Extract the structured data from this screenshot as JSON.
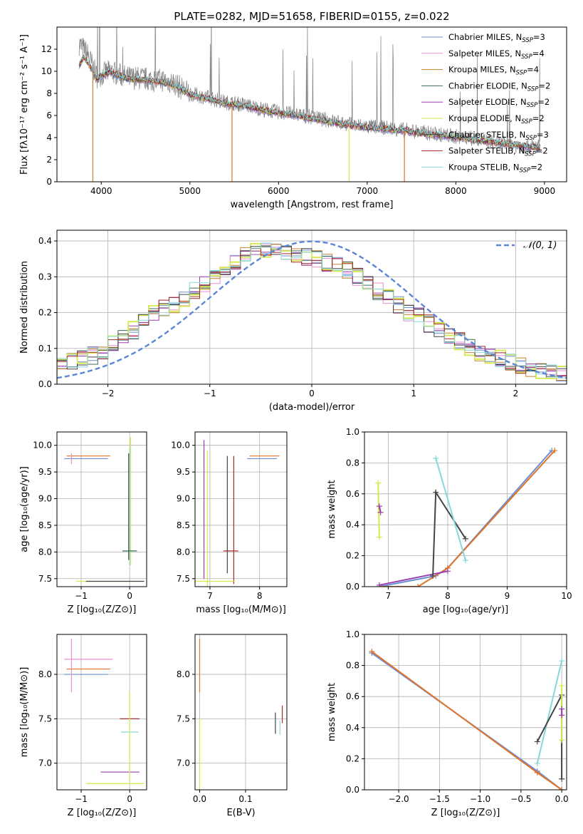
{
  "chart_data": [
    {
      "id": "spectrum",
      "type": "line",
      "title": "PLATE=0282, MJD=51658, FIBERID=0155, z=0.022",
      "xlabel": "wavelength [Angstrom, rest frame]",
      "ylabel": "Flux [fλ10⁻¹⁷ erg cm⁻² s⁻¹ A⁻¹]",
      "xlim": [
        3500,
        9250
      ],
      "ylim": [
        0,
        14
      ],
      "xticks": [
        4000,
        5000,
        6000,
        7000,
        8000,
        9000
      ],
      "yticks": [
        0,
        2,
        4,
        6,
        8,
        10,
        12
      ],
      "grid": false,
      "legend_position": "top-right",
      "observed": {
        "color": "#808080",
        "x": [
          3750,
          3800,
          3850,
          3900,
          3950,
          4000,
          4100,
          4200,
          4300,
          4400,
          4500,
          4600,
          4700,
          4800,
          4900,
          5000,
          5200,
          5400,
          5600,
          5800,
          6000,
          6200,
          6400,
          6600,
          6800,
          7000,
          7200,
          7400,
          7600,
          7800,
          8000,
          8200,
          8400,
          8600,
          8800,
          8950
        ],
        "y": [
          12.5,
          12.0,
          11.5,
          10.5,
          9.5,
          9.7,
          10.0,
          9.7,
          9.4,
          9.4,
          9.3,
          9.2,
          9.2,
          9.0,
          8.5,
          8.0,
          7.6,
          7.2,
          7.0,
          6.6,
          6.3,
          6.1,
          5.8,
          5.5,
          5.2,
          5.0,
          4.9,
          4.7,
          4.5,
          4.3,
          4.1,
          3.9,
          3.6,
          3.4,
          3.2,
          3.2
        ]
      },
      "model": {
        "x": [
          3750,
          3800,
          3850,
          3900,
          3950,
          4000,
          4100,
          4200,
          4300,
          4400,
          4500,
          4600,
          4700,
          4800,
          4900,
          5000,
          5200,
          5400,
          5600,
          5800,
          6000,
          6200,
          6400,
          6600,
          6800,
          7000,
          7200,
          7400,
          7600,
          7800,
          8000,
          8200,
          8400,
          8600,
          8800,
          8950
        ],
        "y": [
          10.5,
          11.2,
          10.8,
          10.0,
          9.3,
          9.6,
          9.9,
          9.6,
          9.3,
          9.3,
          9.2,
          9.1,
          9.0,
          8.8,
          8.4,
          7.9,
          7.5,
          7.1,
          6.9,
          6.5,
          6.2,
          6.0,
          5.7,
          5.4,
          5.1,
          4.9,
          4.8,
          4.6,
          4.4,
          4.2,
          4.0,
          3.8,
          3.6,
          3.4,
          3.2,
          3.1
        ]
      },
      "series": [
        {
          "name": "Chabrier MILES, N_SSP=3",
          "legend_main": "Chabrier MILES, N",
          "legend_sub": "SSP",
          "legend_tail": "=3",
          "color": "#6a8fd6"
        },
        {
          "name": "Salpeter MILES, N_SSP=4",
          "legend_main": "Salpeter MILES, N",
          "legend_sub": "SSP",
          "legend_tail": "=4",
          "color": "#e88fd0"
        },
        {
          "name": "Kroupa MILES, N_SSP=4",
          "legend_main": "Kroupa MILES, N",
          "legend_sub": "SSP",
          "legend_tail": "=4",
          "color": "#c8822e"
        },
        {
          "name": "Chabrier ELODIE, N_SSP=2",
          "legend_main": "Chabrier ELODIE, N",
          "legend_sub": "SSP",
          "legend_tail": "=2",
          "color": "#3d6b5e"
        },
        {
          "name": "Salpeter ELODIE, N_SSP=2",
          "legend_main": "Salpeter ELODIE, N",
          "legend_sub": "SSP",
          "legend_tail": "=2",
          "color": "#9a3fb0"
        },
        {
          "name": "Kroupa ELODIE, N_SSP=2",
          "legend_main": "Kroupa ELODIE, N",
          "legend_sub": "SSP",
          "legend_tail": "=2",
          "color": "#d6e84a"
        },
        {
          "name": "Chabrier STELIB, N_SSP=3",
          "legend_main": "Chabrier STELIB, N",
          "legend_sub": "SSP",
          "legend_tail": "=3",
          "color": "#444444"
        },
        {
          "name": "Salpeter STELIB, N_SSP=2",
          "legend_main": "Salpeter STELIB, N",
          "legend_sub": "SSP",
          "legend_tail": "=2",
          "color": "#a52a2a"
        },
        {
          "name": "Kroupa STELIB, N_SSP=2",
          "legend_main": "Kroupa STELIB, N",
          "legend_sub": "SSP",
          "legend_tail": "=2",
          "color": "#86d8dc"
        }
      ],
      "absorption_spikes": [
        {
          "x": 3905,
          "color": "#c8822e"
        },
        {
          "x": 5475,
          "color": "#e0742a"
        },
        {
          "x": 6795,
          "color": "#d6e84a"
        },
        {
          "x": 7420,
          "color": "#e0742a"
        }
      ]
    },
    {
      "id": "residuals",
      "type": "line",
      "xlabel": "(data-model)/error",
      "ylabel": "Normed distribution",
      "xlim": [
        -2.5,
        2.5
      ],
      "ylim": [
        0,
        0.43
      ],
      "xticks": [
        -2,
        -1,
        0,
        1,
        2
      ],
      "yticks": [
        0.0,
        0.1,
        0.2,
        0.3,
        0.4
      ],
      "grid": true,
      "legend_position": "top-right",
      "reference": {
        "name": "N(0,1)",
        "label": "𝒩(0, 1)",
        "color": "#5b86d6",
        "mean": 0,
        "sigma": 1
      },
      "hist_bin_edges_range": [
        -2.5,
        2.5
      ],
      "hist_bins": 50,
      "hist_profile": [
        0.06,
        0.065,
        0.07,
        0.08,
        0.09,
        0.11,
        0.13,
        0.15,
        0.17,
        0.2,
        0.21,
        0.22,
        0.24,
        0.26,
        0.28,
        0.3,
        0.32,
        0.34,
        0.36,
        0.37,
        0.375,
        0.37,
        0.365,
        0.36,
        0.355,
        0.35,
        0.34,
        0.33,
        0.32,
        0.3,
        0.28,
        0.26,
        0.24,
        0.22,
        0.2,
        0.19,
        0.17,
        0.15,
        0.13,
        0.12,
        0.1,
        0.09,
        0.08,
        0.07,
        0.06,
        0.05,
        0.045,
        0.04,
        0.035,
        0.03
      ]
    },
    {
      "id": "age-vs-Z",
      "type": "scatter",
      "xlabel": "Z [log₁₀(Z/Z⊙)]",
      "ylabel": "age  [log₁₀(age/yr)]",
      "xlim": [
        -1.5,
        0.35
      ],
      "ylim": [
        7.35,
        10.25
      ],
      "xticks": [
        -1,
        0
      ],
      "yticks": [
        7.5,
        8.0,
        8.5,
        9.0,
        9.5,
        10.0
      ],
      "grid": true,
      "errorbars": [
        {
          "x": -0.85,
          "y": 9.8,
          "xerr": 0.45,
          "color": "#e0742a"
        },
        {
          "x": -0.9,
          "y": 9.75,
          "xerr": 0.45,
          "color": "#6a8fd6"
        },
        {
          "x": -1.2,
          "y": 9.75,
          "yerr": 0.1,
          "color": "#e88fd0"
        },
        {
          "x": -0.02,
          "y": 8.85,
          "yerr": 1.0,
          "color": "#444444"
        },
        {
          "x": 0.0,
          "y": 8.85,
          "yerr": 1.1,
          "color": "#86d8dc"
        },
        {
          "x": 0.02,
          "y": 8.95,
          "yerr": 1.2,
          "color": "#d6e84a"
        },
        {
          "x": 0.0,
          "y": 8.02,
          "xerr": 0.15,
          "color": "#3d6b5e"
        },
        {
          "x": -0.4,
          "y": 7.45,
          "xerr": 0.7,
          "color": "#d6e84a"
        },
        {
          "x": -0.3,
          "y": 7.45,
          "xerr": 0.6,
          "color": "#444444"
        }
      ]
    },
    {
      "id": "age-vs-mass",
      "type": "scatter",
      "xlabel": "mass [log₁₀(M/M⊙)]",
      "ylabel": "",
      "xlim": [
        6.7,
        8.55
      ],
      "ylim": [
        7.35,
        10.25
      ],
      "xticks": [
        7,
        8
      ],
      "yticks": [
        7.5,
        8.0,
        8.5,
        9.0,
        9.5,
        10.0
      ],
      "grid": true,
      "errorbars": [
        {
          "x": 6.88,
          "y": 8.8,
          "yerr": 1.3,
          "color": "#9a3fb0"
        },
        {
          "x": 6.95,
          "y": 8.5,
          "yerr": 1.4,
          "color": "#d6e84a"
        },
        {
          "x": 7.35,
          "y": 8.7,
          "yerr": 1.1,
          "color": "#444444"
        },
        {
          "x": 7.48,
          "y": 8.6,
          "yerr": 1.2,
          "color": "#a52a2a"
        },
        {
          "x": 7.42,
          "y": 8.02,
          "xerr": 0.15,
          "color": "#a52a2a"
        },
        {
          "x": 8.1,
          "y": 9.8,
          "xerr": 0.3,
          "color": "#e0742a"
        },
        {
          "x": 8.05,
          "y": 9.75,
          "xerr": 0.3,
          "color": "#6a8fd6"
        },
        {
          "x": 7.1,
          "y": 7.45,
          "xerr": 0.4,
          "color": "#d6e84a"
        }
      ]
    },
    {
      "id": "massweight-vs-age",
      "type": "line",
      "xlabel": "age  [log₁₀(age/yr)]",
      "ylabel": "mass weight",
      "xlim": [
        6.6,
        10.0
      ],
      "ylim": [
        0.0,
        1.0
      ],
      "xticks": [
        7,
        8,
        9,
        10
      ],
      "yticks": [
        0.0,
        0.2,
        0.4,
        0.6,
        0.8,
        1.0
      ],
      "grid": true,
      "series": [
        {
          "name": "Chabrier MILES",
          "color": "#6a8fd6",
          "x": [
            6.85,
            7.8,
            8.0,
            9.75
          ],
          "y": [
            0.0,
            0.07,
            0.12,
            0.88
          ]
        },
        {
          "name": "Kroupa MILES",
          "color": "#e0742a",
          "x": [
            6.85,
            7.5,
            8.0,
            9.8
          ],
          "y": [
            0.0,
            0.0,
            0.12,
            0.88
          ]
        },
        {
          "name": "Salpeter MILES",
          "color": "#9a3fb0",
          "x": [
            6.85,
            8.0
          ],
          "y": [
            0.01,
            0.1
          ]
        },
        {
          "name": "Chabrier STELIB",
          "color": "#444444",
          "x": [
            7.75,
            7.8,
            8.3
          ],
          "y": [
            0.07,
            0.61,
            0.31
          ]
        },
        {
          "name": "Kroupa STELIB",
          "color": "#86d8dc",
          "x": [
            7.8,
            8.3
          ],
          "y": [
            0.83,
            0.17
          ]
        },
        {
          "name": "Kroupa ELODIE",
          "color": "#d6e84a",
          "x": [
            6.83,
            6.85
          ],
          "y": [
            0.67,
            0.32
          ]
        },
        {
          "name": "Salpeter ELODIE",
          "color": "#9a3fb0",
          "x": [
            6.85,
            6.87
          ],
          "y": [
            0.52,
            0.48
          ]
        }
      ]
    },
    {
      "id": "mass-vs-Z",
      "type": "scatter",
      "xlabel": "Z [log₁₀(Z/Z⊙)]",
      "ylabel": "mass [log₁₀(M/M⊙)]",
      "xlim": [
        -1.5,
        0.35
      ],
      "ylim": [
        6.7,
        8.45
      ],
      "xticks": [
        -1,
        0
      ],
      "yticks": [
        7.0,
        7.5,
        8.0
      ],
      "grid": true,
      "errorbars": [
        {
          "x": -0.85,
          "y": 8.17,
          "xerr": 0.5,
          "color": "#e88fd0"
        },
        {
          "x": -0.85,
          "y": 8.06,
          "xerr": 0.45,
          "color": "#e0742a"
        },
        {
          "x": -0.9,
          "y": 8.0,
          "xerr": 0.45,
          "color": "#6a8fd6"
        },
        {
          "x": -1.2,
          "y": 8.1,
          "yerr": 0.3,
          "color": "#e88fd0"
        },
        {
          "x": 0.0,
          "y": 7.5,
          "xerr": 0.2,
          "color": "#a52a2a"
        },
        {
          "x": 0.0,
          "y": 7.35,
          "xerr": 0.18,
          "color": "#86d8dc"
        },
        {
          "x": -0.2,
          "y": 6.9,
          "xerr": 0.4,
          "color": "#9a3fb0"
        },
        {
          "x": -0.3,
          "y": 6.77,
          "xerr": 0.6,
          "color": "#d6e84a"
        },
        {
          "x": 0.0,
          "y": 7.3,
          "yerr": 0.5,
          "color": "#d6e84a"
        }
      ]
    },
    {
      "id": "mass-vs-EBV",
      "type": "scatter",
      "xlabel": "E(B-V)",
      "ylabel": "",
      "xlim": [
        -0.01,
        0.19
      ],
      "ylim": [
        6.7,
        8.45
      ],
      "xticks": [
        0.0,
        0.1
      ],
      "yticks": [
        7.0,
        7.5,
        8.0
      ],
      "grid": true,
      "errorbars": [
        {
          "x": 0.0,
          "y": 8.1,
          "yerr": 0.3,
          "color": "#e0742a"
        },
        {
          "x": 0.0,
          "y": 7.1,
          "yerr": 0.4,
          "color": "#d6e84a"
        },
        {
          "x": 0.165,
          "y": 7.45,
          "yerr": 0.12,
          "color": "#444444"
        },
        {
          "x": 0.18,
          "y": 7.55,
          "yerr": 0.1,
          "color": "#a52a2a"
        },
        {
          "x": 0.175,
          "y": 7.4,
          "yerr": 0.08,
          "color": "#86d8dc"
        }
      ]
    },
    {
      "id": "massweight-vs-Z",
      "type": "line",
      "xlabel": "Z [log₁₀(Z/Z⊙)]",
      "ylabel": "mass weight",
      "xlim": [
        -2.42,
        0.06
      ],
      "ylim": [
        0.0,
        1.0
      ],
      "xticks": [
        -2.0,
        -1.5,
        -1.0,
        -0.5,
        0.0
      ],
      "yticks": [
        0.0,
        0.2,
        0.4,
        0.6,
        0.8,
        1.0
      ],
      "grid": true,
      "series": [
        {
          "name": "Chabrier MILES",
          "color": "#6a8fd6",
          "x": [
            -2.33,
            -0.3,
            0.0
          ],
          "y": [
            0.88,
            0.12,
            0.0
          ]
        },
        {
          "name": "Kroupa MILES",
          "color": "#e0742a",
          "x": [
            -2.33,
            -0.3,
            0.0
          ],
          "y": [
            0.89,
            0.11,
            0.0
          ]
        },
        {
          "name": "Kroupa STELIB",
          "color": "#86d8dc",
          "x": [
            -0.3,
            0.0
          ],
          "y": [
            0.17,
            0.83
          ]
        },
        {
          "name": "Chabrier STELIB",
          "color": "#444444",
          "x": [
            -0.3,
            0.0,
            0.0
          ],
          "y": [
            0.31,
            0.61,
            0.07
          ]
        },
        {
          "name": "Kroupa ELODIE",
          "color": "#d6e84a",
          "x": [
            0.0,
            0.0
          ],
          "y": [
            0.67,
            0.32
          ]
        },
        {
          "name": "Salpeter ELODIE",
          "color": "#9a3fb0",
          "x": [
            0.0,
            0.0
          ],
          "y": [
            0.52,
            0.48
          ]
        }
      ]
    }
  ]
}
